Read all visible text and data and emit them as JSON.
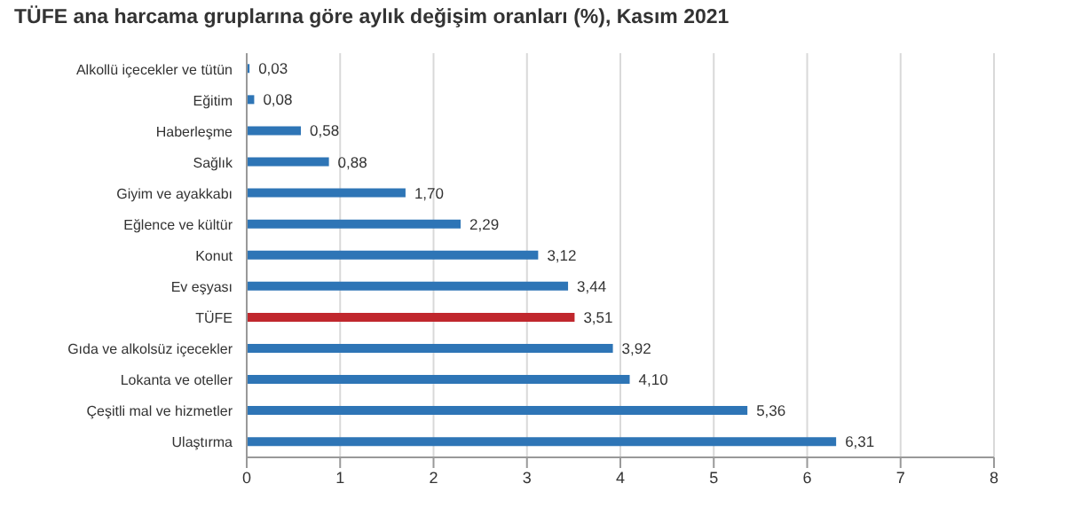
{
  "chart_data": {
    "type": "bar",
    "orientation": "horizontal",
    "title": "TÜFE ana harcama gruplarına göre aylık değişim oranları (%), Kasım 2021",
    "categories": [
      "Alkollü içecekler ve tütün",
      "Eğitim",
      "Haberleşme",
      "Sağlık",
      "Giyim ve ayakkabı",
      "Eğlence ve kültür",
      "Konut",
      "Ev eşyası",
      "TÜFE",
      "Gıda ve alkolsüz içecekler",
      "Lokanta ve oteller",
      "Çeşitli mal ve hizmetler",
      "Ulaştırma"
    ],
    "values": [
      0.03,
      0.08,
      0.58,
      0.88,
      1.7,
      2.29,
      3.12,
      3.44,
      3.51,
      3.92,
      4.1,
      5.36,
      6.31
    ],
    "value_labels": [
      "0,03",
      "0,08",
      "0,58",
      "0,88",
      "1,70",
      "2,29",
      "3,12",
      "3,44",
      "3,51",
      "3,92",
      "4,10",
      "5,36",
      "6,31"
    ],
    "colors": [
      "#2e75b6",
      "#2e75b6",
      "#2e75b6",
      "#2e75b6",
      "#2e75b6",
      "#2e75b6",
      "#2e75b6",
      "#2e75b6",
      "#c0272d",
      "#2e75b6",
      "#2e75b6",
      "#2e75b6",
      "#2e75b6"
    ],
    "xlim": [
      0,
      8
    ],
    "xticks": [
      0,
      1,
      2,
      3,
      4,
      5,
      6,
      7,
      8
    ],
    "grid": "x"
  }
}
